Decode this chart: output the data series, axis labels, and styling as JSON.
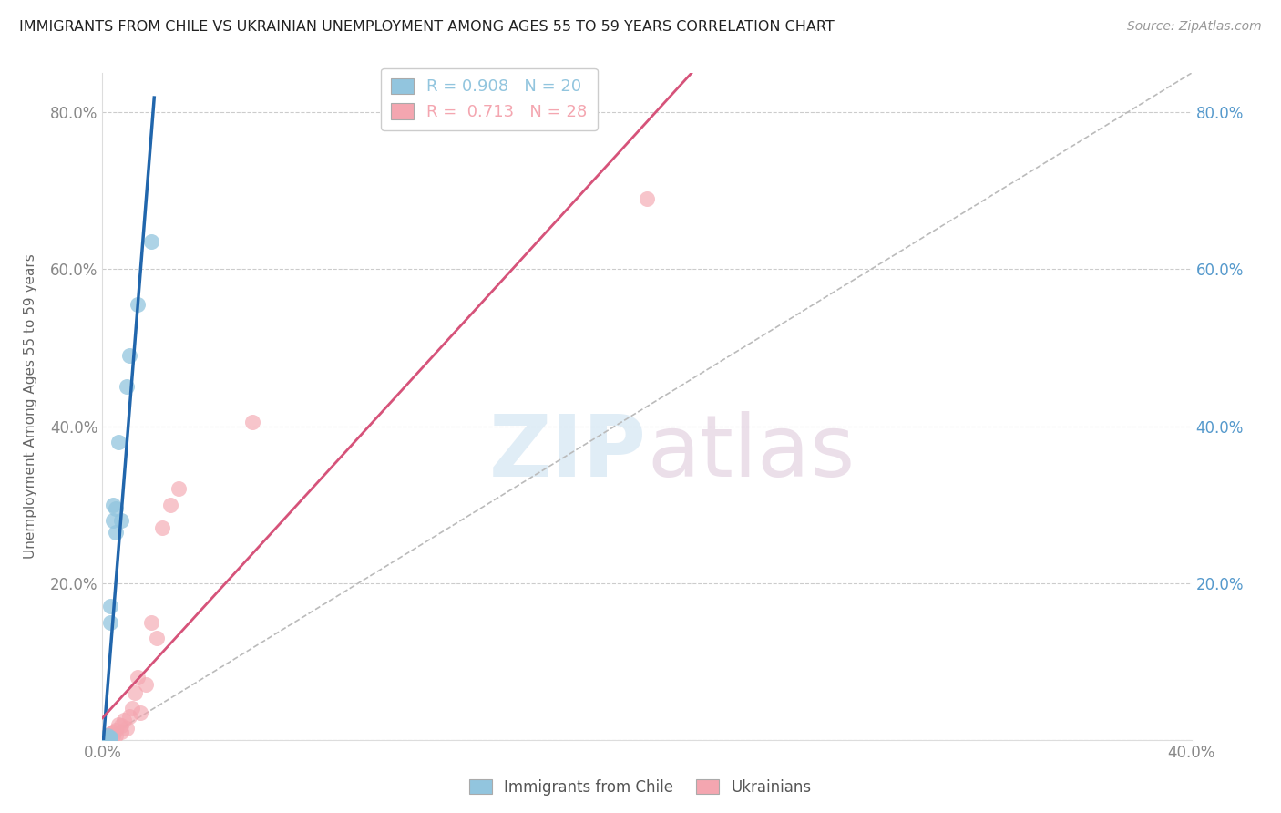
{
  "title": "IMMIGRANTS FROM CHILE VS UKRAINIAN UNEMPLOYMENT AMONG AGES 55 TO 59 YEARS CORRELATION CHART",
  "source": "Source: ZipAtlas.com",
  "ylabel": "Unemployment Among Ages 55 to 59 years",
  "xlim": [
    0.0,
    0.4
  ],
  "ylim": [
    0.0,
    0.85
  ],
  "watermark_zip": "ZIP",
  "watermark_atlas": "atlas",
  "chile_R": 0.908,
  "chile_N": 20,
  "ukraine_R": 0.713,
  "ukraine_N": 28,
  "chile_color": "#92c5de",
  "ukraine_color": "#f4a6b0",
  "chile_line_color": "#2166ac",
  "ukraine_line_color": "#d6537a",
  "diagonal_color": "#bbbbbb",
  "chile_points_x": [
    0.001,
    0.001,
    0.002,
    0.002,
    0.002,
    0.003,
    0.003,
    0.003,
    0.003,
    0.003,
    0.004,
    0.004,
    0.005,
    0.005,
    0.006,
    0.007,
    0.009,
    0.01,
    0.013,
    0.018
  ],
  "chile_points_y": [
    0.001,
    0.002,
    0.001,
    0.003,
    0.005,
    0.001,
    0.002,
    0.003,
    0.15,
    0.17,
    0.28,
    0.3,
    0.265,
    0.295,
    0.38,
    0.28,
    0.45,
    0.49,
    0.555,
    0.635
  ],
  "ukraine_points_x": [
    0.001,
    0.001,
    0.002,
    0.002,
    0.003,
    0.003,
    0.004,
    0.004,
    0.005,
    0.005,
    0.006,
    0.007,
    0.007,
    0.008,
    0.009,
    0.01,
    0.011,
    0.012,
    0.013,
    0.014,
    0.016,
    0.018,
    0.02,
    0.022,
    0.025,
    0.028,
    0.055,
    0.2
  ],
  "ukraine_points_y": [
    0.001,
    0.003,
    0.002,
    0.005,
    0.003,
    0.008,
    0.006,
    0.01,
    0.005,
    0.012,
    0.02,
    0.01,
    0.018,
    0.025,
    0.015,
    0.03,
    0.04,
    0.06,
    0.08,
    0.035,
    0.07,
    0.15,
    0.13,
    0.27,
    0.3,
    0.32,
    0.405,
    0.69
  ],
  "legend_labels": [
    "Immigrants from Chile",
    "Ukrainians"
  ],
  "background_color": "#ffffff",
  "grid_color": "#cccccc"
}
